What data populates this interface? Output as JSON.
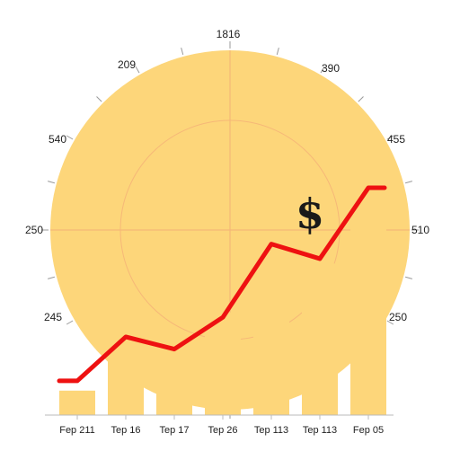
{
  "chart_data": {
    "type": "bar",
    "title": "",
    "xlabel": "",
    "ylabel": "",
    "categories": [
      "Fep 211",
      "Tep 16",
      "Tep 17",
      "Tep 26",
      "Tep 113",
      "Tep 113",
      "Fep 05"
    ],
    "series": [
      {
        "type": "bar",
        "values": [
          10,
          28,
          31,
          42,
          58,
          62,
          90
        ]
      },
      {
        "type": "line",
        "values": [
          14,
          32,
          27,
          40,
          70,
          64,
          93
        ]
      }
    ],
    "ylim": [
      0,
      100
    ],
    "grid": false,
    "legend": "none",
    "dial_labels": [
      "1816",
      "390",
      "455",
      "510",
      "250",
      "245",
      "250",
      "540",
      "209"
    ],
    "annotation": "$",
    "colors": {
      "bar": "#fdd67a",
      "line": "#ee1111",
      "dial": "#fdd67a",
      "dial_lines": "#f6b878",
      "axis": "#bbbbbb"
    }
  }
}
